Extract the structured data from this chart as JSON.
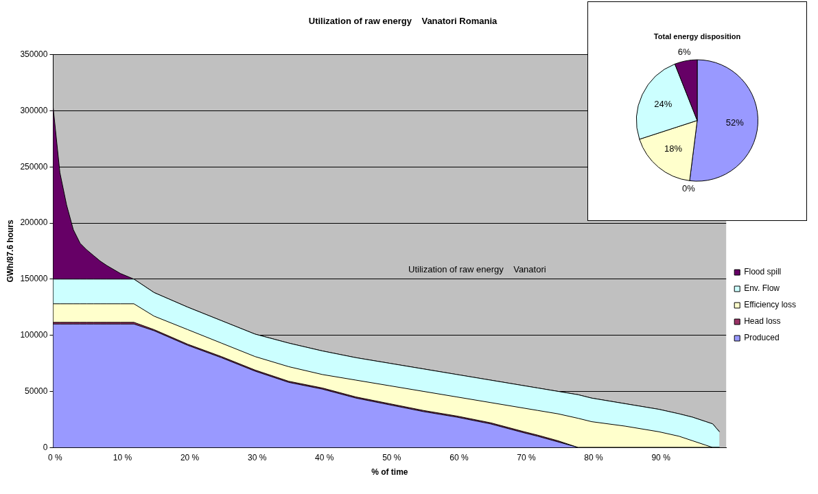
{
  "chart_data": [
    {
      "type": "area",
      "title": "Utilization of raw energy    Vanatori Romania",
      "xlabel": "% of time",
      "ylabel": "GWh/87.6 hours",
      "x": [
        0,
        1,
        2,
        3,
        4,
        5,
        6,
        7,
        8,
        10,
        12,
        15,
        20,
        25,
        30,
        35,
        40,
        45,
        50,
        55,
        60,
        65,
        70,
        72,
        75,
        78,
        80,
        85,
        90,
        93,
        95,
        97,
        98,
        99
      ],
      "series": [
        {
          "name": "Produced",
          "color": "#9999ff",
          "values": [
            110000,
            110000,
            110000,
            110000,
            110000,
            110000,
            110000,
            110000,
            110000,
            110000,
            110000,
            104000,
            91000,
            80000,
            68000,
            58000,
            52000,
            44000,
            38000,
            32000,
            27000,
            21000,
            13000,
            10000,
            5000,
            0,
            0,
            0,
            0,
            0,
            0,
            0,
            0,
            0
          ]
        },
        {
          "name": "Head loss",
          "color": "#993366",
          "values": [
            1500,
            1500,
            1500,
            1500,
            1500,
            1500,
            1500,
            1500,
            1500,
            1500,
            1500,
            1000,
            1000,
            1000,
            1000,
            1000,
            1000,
            1000,
            1000,
            1000,
            1000,
            1000,
            1000,
            1000,
            1000,
            0,
            0,
            0,
            0,
            0,
            0,
            0,
            0,
            0
          ]
        },
        {
          "name": "Efficiency loss",
          "color": "#ffffcc",
          "values": [
            16500,
            16500,
            16500,
            16500,
            16500,
            16500,
            16500,
            16500,
            16500,
            16500,
            16500,
            12000,
            13000,
            12000,
            12000,
            13000,
            12000,
            15000,
            16000,
            17000,
            17000,
            18000,
            21000,
            22000,
            24000,
            26000,
            23000,
            19000,
            14000,
            10000,
            6000,
            2000,
            0,
            0
          ]
        },
        {
          "name": "Env. Flow",
          "color": "#ccffff",
          "values": [
            22000,
            22000,
            22000,
            22000,
            22000,
            22000,
            22000,
            22000,
            22000,
            22000,
            22000,
            21000,
            20000,
            20000,
            20000,
            21000,
            21000,
            20000,
            20000,
            20000,
            20000,
            20000,
            20000,
            20000,
            20000,
            21000,
            21000,
            20000,
            20000,
            20000,
            21000,
            21000,
            21000,
            14000
          ]
        },
        {
          "name": "Flood spill",
          "color": "#660066",
          "values": [
            153000,
            95000,
            66000,
            44000,
            32000,
            26000,
            21000,
            16000,
            12000,
            5000,
            0,
            0,
            0,
            0,
            0,
            0,
            0,
            0,
            0,
            0,
            0,
            0,
            0,
            0,
            0,
            0,
            0,
            0,
            0,
            0,
            0,
            0,
            0,
            0
          ]
        }
      ],
      "stacked": true,
      "xlim": [
        0,
        100
      ],
      "xticks": [
        {
          "value": 0,
          "label": "0 %"
        },
        {
          "value": 10,
          "label": "10 %"
        },
        {
          "value": 20,
          "label": "20 %"
        },
        {
          "value": 30,
          "label": "30 %"
        },
        {
          "value": 40,
          "label": "40 %"
        },
        {
          "value": 50,
          "label": "50 %"
        },
        {
          "value": 60,
          "label": "60 %"
        },
        {
          "value": 70,
          "label": "70 %"
        },
        {
          "value": 80,
          "label": "80 %"
        },
        {
          "value": 90,
          "label": "90 %"
        }
      ],
      "ylim": [
        0,
        350000
      ],
      "yticks": [
        0,
        50000,
        100000,
        150000,
        200000,
        250000,
        300000,
        350000
      ],
      "grid": "y",
      "legend": "right",
      "annotations": [
        "Utilization of raw energy    Vanatori"
      ]
    },
    {
      "type": "pie",
      "title": "Total energy disposition",
      "categories": [
        null,
        null,
        null,
        null,
        null
      ],
      "values": [
        52,
        0,
        18,
        24,
        6
      ],
      "colors": [
        "#9999ff",
        "#993366",
        "#ffffcc",
        "#ccffff",
        "#660066"
      ],
      "value_labels": [
        "52%",
        "0%",
        "18%",
        "24%",
        "6%"
      ]
    }
  ]
}
